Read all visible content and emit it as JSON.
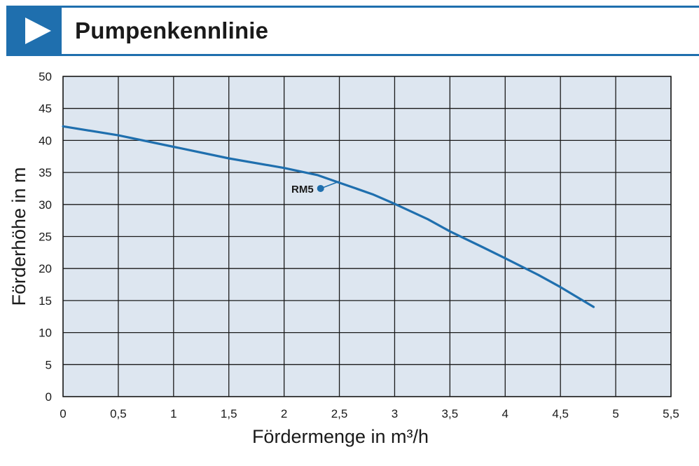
{
  "header": {
    "title": "Pumpenkennlinie",
    "accent_color": "#1f6fae",
    "icon": "play-triangle-icon"
  },
  "chart_data": {
    "type": "line",
    "title": "",
    "xlabel": "Fördermenge in m³/h",
    "ylabel": "Förderhöhe in m",
    "xlim": [
      0,
      5.5
    ],
    "ylim": [
      0,
      50
    ],
    "x_ticks": [
      "0",
      "0,5",
      "1",
      "1,5",
      "2",
      "2,5",
      "3",
      "3,5",
      "4",
      "4,5",
      "5",
      "5,5"
    ],
    "y_ticks": [
      "0",
      "5",
      "10",
      "15",
      "20",
      "25",
      "30",
      "35",
      "40",
      "45",
      "50"
    ],
    "x_tick_values": [
      0,
      0.5,
      1,
      1.5,
      2,
      2.5,
      3,
      3.5,
      4,
      4.5,
      5,
      5.5
    ],
    "y_tick_values": [
      0,
      5,
      10,
      15,
      20,
      25,
      30,
      35,
      40,
      45,
      50
    ],
    "grid": true,
    "plot_background": "#dde6f0",
    "series": [
      {
        "name": "RM5",
        "color": "#1f6fae",
        "x": [
          0,
          0.5,
          1.0,
          1.5,
          2.0,
          2.3,
          2.5,
          2.8,
          3.0,
          3.3,
          3.5,
          3.8,
          4.0,
          4.3,
          4.5,
          4.8
        ],
        "y": [
          42.2,
          40.8,
          39.0,
          37.2,
          35.7,
          34.6,
          33.4,
          31.6,
          30.1,
          27.7,
          25.8,
          23.3,
          21.6,
          19.0,
          17.1,
          14.0
        ]
      }
    ],
    "annotations": [
      {
        "text": "RM5",
        "x": 2.33,
        "y": 32.5,
        "color": "#1a1a1a",
        "marker_color": "#1f6fae"
      }
    ]
  }
}
